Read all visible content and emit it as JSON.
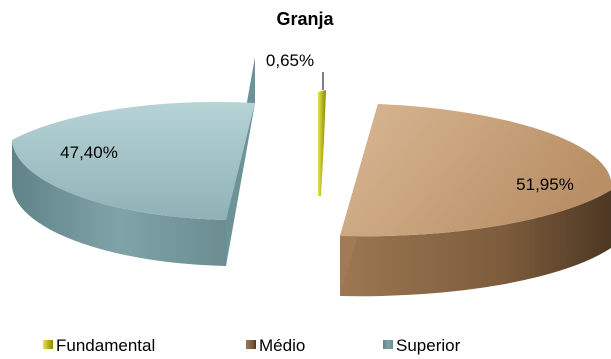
{
  "chart_data": {
    "type": "pie",
    "title": "Granja",
    "categories": [
      "Fundamental",
      "Médio",
      "Superior"
    ],
    "values": [
      0.65,
      51.95,
      47.4
    ],
    "data_labels": [
      "0,65%",
      "51,95%",
      "47,40%"
    ],
    "colors": {
      "Fundamental": "#c8c400",
      "Médio": "#c09870",
      "Superior": "#94b8bc"
    },
    "style": "3d-exploded",
    "legend_position": "bottom"
  }
}
